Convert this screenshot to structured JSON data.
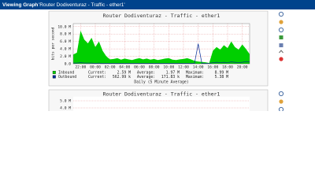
{
  "header": {
    "label": "Viewing Graph",
    "name": "'Router Dodiventuraz - Traffic - ether1'"
  },
  "graphs": [
    {
      "type": "area",
      "title": "Router Dodiventuraz - Traffic - ether1",
      "y_axis_label": "bits per second",
      "ylim": [
        0,
        10.8
      ],
      "yticks": [
        {
          "value": 0,
          "label": "0.0"
        },
        {
          "value": 2,
          "label": "2.0 M"
        },
        {
          "value": 4,
          "label": "4.0 M"
        },
        {
          "value": 6,
          "label": "6.0 M"
        },
        {
          "value": 8,
          "label": "8.0 M"
        },
        {
          "value": 10,
          "label": "10.0 M"
        }
      ],
      "xlim": [
        0,
        24
      ],
      "xticks": [
        {
          "value": 1,
          "label": "22:00"
        },
        {
          "value": 3,
          "label": "00:00"
        },
        {
          "value": 5,
          "label": "02:00"
        },
        {
          "value": 7,
          "label": "04:00"
        },
        {
          "value": 9,
          "label": "06:00"
        },
        {
          "value": 11,
          "label": "08:00"
        },
        {
          "value": 13,
          "label": "10:00"
        },
        {
          "value": 15,
          "label": "12:00"
        },
        {
          "value": 17,
          "label": "14:00"
        },
        {
          "value": 19,
          "label": "16:00"
        },
        {
          "value": 21,
          "label": "18:00"
        },
        {
          "value": 23,
          "label": "20:00"
        }
      ],
      "grid": true,
      "x": [
        0,
        0.5,
        1,
        1.5,
        2,
        2.5,
        3,
        3.5,
        4,
        4.5,
        5,
        5.5,
        6,
        6.5,
        7,
        7.5,
        8,
        8.5,
        9,
        9.5,
        10,
        10.5,
        11,
        11.5,
        12,
        12.5,
        13,
        13.5,
        14,
        14.5,
        15,
        15.5,
        16,
        16.5,
        17,
        17.5,
        18,
        18.5,
        19,
        19.5,
        20,
        20.5,
        21,
        21.5,
        22,
        22.5,
        23,
        23.5,
        24
      ],
      "series": [
        {
          "name": "Inbound",
          "color": "#00cf00",
          "fill": true,
          "values": [
            2.5,
            3.0,
            8.9,
            6.5,
            5.5,
            7.0,
            4.5,
            6.0,
            3.5,
            2.0,
            1.2,
            1.3,
            1.5,
            1.1,
            1.4,
            1.2,
            1.0,
            1.3,
            1.5,
            1.2,
            1.4,
            1.1,
            1.3,
            1.0,
            1.2,
            1.4,
            1.5,
            1.1,
            1.0,
            1.2,
            1.3,
            1.5,
            1.2,
            0.8,
            0.6,
            0.5,
            0.4,
            0.2,
            3.5,
            4.5,
            3.8,
            5.0,
            4.2,
            6.0,
            4.5,
            3.8,
            5.2,
            4.0,
            2.6
          ],
          "stats": [
            {
              "label": "Current:",
              "value": "2.59 M"
            },
            {
              "label": "Average:",
              "value": "1.97 M"
            },
            {
              "label": "Maximum:",
              "value": "8.99 M"
            }
          ]
        },
        {
          "name": "Outbound",
          "color": "#002a97",
          "fill": false,
          "values": [
            0.2,
            0.2,
            0.3,
            0.2,
            0.2,
            0.2,
            0.1,
            0.2,
            0.1,
            0.1,
            0.1,
            0.1,
            0.1,
            0.1,
            0.1,
            0.1,
            0.1,
            0.1,
            0.1,
            0.1,
            0.1,
            0.1,
            0.1,
            0.1,
            0.1,
            0.1,
            0.1,
            0.1,
            0.1,
            0.1,
            0.1,
            0.1,
            0.1,
            0.1,
            5.38,
            0.1,
            0.1,
            0.1,
            0.3,
            0.4,
            0.3,
            0.4,
            0.3,
            0.5,
            0.4,
            0.3,
            0.4,
            0.6,
            0.56
          ],
          "stats": [
            {
              "label": "Current:",
              "value": "562.99 k"
            },
            {
              "label": "Average:",
              "value": "171.83 k"
            },
            {
              "label": "Maximum:",
              "value": "5.38 M"
            }
          ]
        }
      ],
      "footer": "Daily (5 Minute Average)"
    },
    {
      "type": "area",
      "title": "Router Dodiventuraz - Traffic - ether1",
      "ylim": [
        0,
        5.6
      ],
      "yticks": [
        {
          "value": 4,
          "label": "4.0 M"
        },
        {
          "value": 5,
          "label": "5.0 M"
        }
      ],
      "grid": true
    }
  ]
}
